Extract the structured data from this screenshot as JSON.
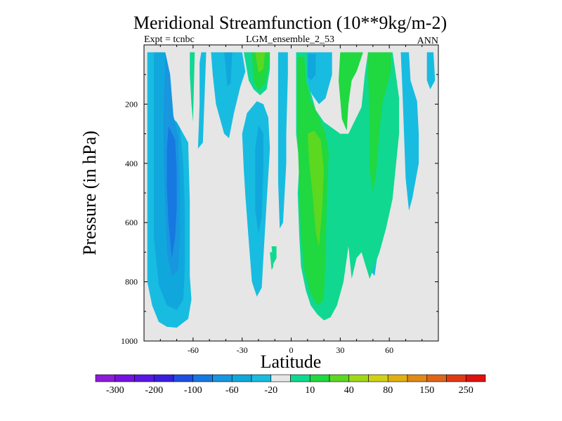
{
  "chart_data": {
    "type": "contour",
    "title": "Meridional Streamfunction (10**9kg/m-2)",
    "subtitle_left": "Expt = tcnbc",
    "subtitle_center": "LGM_ensemble_2_53",
    "subtitle_right": "ANN",
    "xlabel": "Latitude",
    "ylabel": "Pressure (in hPa)",
    "xlim": [
      -90,
      90
    ],
    "ylim": [
      0,
      1000
    ],
    "xticks": [
      -60,
      -30,
      0,
      30,
      60
    ],
    "yticks": [
      200,
      400,
      600,
      800,
      1000
    ],
    "background_color": "#e6e6e6",
    "colorbar": {
      "colors": [
        "#8c1cd8",
        "#7412e0",
        "#5a16e6",
        "#3a1ee0",
        "#1f4fe0",
        "#1678e0",
        "#1896e0",
        "#10a8dc",
        "#18bce0",
        "#e6e6e6",
        "#10d890",
        "#20d840",
        "#5cd820",
        "#a0d818",
        "#d0d018",
        "#e0b010",
        "#e08818",
        "#e06418",
        "#e03a14",
        "#e01010"
      ],
      "labels": [
        "-300",
        "-200",
        "-100",
        "-60",
        "-20",
        "10",
        "40",
        "80",
        "150",
        "250"
      ]
    },
    "regions": [
      {
        "sign": "negative",
        "level": "-20",
        "color": "#18bce0",
        "points": [
          [
            -88,
            25
          ],
          [
            -80,
            25
          ],
          [
            -77,
            230
          ],
          [
            -70,
            260
          ],
          [
            -63,
            330
          ],
          [
            -62,
            530
          ],
          [
            -62,
            780
          ],
          [
            -61,
            860
          ],
          [
            -63,
            925
          ],
          [
            -70,
            955
          ],
          [
            -76,
            952
          ],
          [
            -81,
            935
          ],
          [
            -85,
            880
          ],
          [
            -88,
            800
          ]
        ]
      },
      {
        "sign": "negative",
        "level": "-60",
        "color": "#10a8dc",
        "points": [
          [
            -84,
            25
          ],
          [
            -77,
            25
          ],
          [
            -74,
            230
          ],
          [
            -68,
            280
          ],
          [
            -66,
            400
          ],
          [
            -65,
            560
          ],
          [
            -65,
            750
          ],
          [
            -66,
            860
          ],
          [
            -70,
            895
          ],
          [
            -76,
            880
          ],
          [
            -81,
            810
          ],
          [
            -84,
            650
          ]
        ]
      },
      {
        "sign": "negative",
        "level": "-100",
        "color": "#1896e0",
        "points": [
          [
            -77,
            25
          ],
          [
            -74,
            100
          ],
          [
            -72,
            240
          ],
          [
            -69,
            310
          ],
          [
            -68,
            480
          ],
          [
            -68,
            640
          ],
          [
            -69,
            760
          ],
          [
            -73,
            780
          ],
          [
            -76,
            700
          ],
          [
            -77,
            560
          ],
          [
            -78,
            400
          ],
          [
            -78,
            230
          ]
        ]
      },
      {
        "sign": "negative",
        "level": "-300",
        "color": "#1678e0",
        "points": [
          [
            -75,
            275
          ],
          [
            -71,
            320
          ],
          [
            -70,
            420
          ],
          [
            -70,
            550
          ],
          [
            -71,
            650
          ],
          [
            -73,
            720
          ],
          [
            -75,
            600
          ],
          [
            -76,
            480
          ],
          [
            -76,
            350
          ]
        ]
      },
      {
        "sign": "negative",
        "level": "-20",
        "color": "#18bce0",
        "points": [
          [
            -55,
            25
          ],
          [
            -52,
            25
          ],
          [
            -54,
            330
          ],
          [
            -57,
            350
          ],
          [
            -56,
            200
          ],
          [
            -56,
            60
          ]
        ]
      },
      {
        "sign": "negative",
        "level": "-20",
        "color": "#18bce0",
        "points": [
          [
            -49,
            25
          ],
          [
            -30,
            25
          ],
          [
            -28,
            90
          ],
          [
            -31,
            140
          ],
          [
            -35,
            230
          ],
          [
            -38,
            315
          ],
          [
            -41,
            300
          ],
          [
            -46,
            200
          ],
          [
            -48,
            100
          ]
        ]
      },
      {
        "sign": "negative",
        "level": "-60",
        "color": "#10a8dc",
        "points": [
          [
            -41,
            25
          ],
          [
            -36,
            25
          ],
          [
            -37,
            130
          ],
          [
            -39,
            140
          ]
        ]
      },
      {
        "sign": "negative",
        "level": "-20",
        "color": "#18bce0",
        "points": [
          [
            -28,
            510
          ],
          [
            -29,
            420
          ],
          [
            -30,
            300
          ],
          [
            -27,
            230
          ],
          [
            -21,
            190
          ],
          [
            -17,
            200
          ],
          [
            -14,
            245
          ],
          [
            -13,
            350
          ],
          [
            -15,
            530
          ],
          [
            -17,
            720
          ],
          [
            -18,
            820
          ],
          [
            -21,
            850
          ],
          [
            -24,
            800
          ],
          [
            -26,
            660
          ]
        ]
      },
      {
        "sign": "negative",
        "level": "-60",
        "color": "#10a8dc",
        "points": [
          [
            -22,
            350
          ],
          [
            -20,
            270
          ],
          [
            -17,
            300
          ],
          [
            -17,
            420
          ],
          [
            -18,
            580
          ],
          [
            -20,
            640
          ],
          [
            -22,
            560
          ]
        ]
      },
      {
        "sign": "negative",
        "level": "-20",
        "color": "#18bce0",
        "points": [
          [
            -8,
            25
          ],
          [
            -2,
            25
          ],
          [
            -2,
            100
          ],
          [
            -3,
            300
          ],
          [
            -3,
            400
          ],
          [
            -5,
            600
          ],
          [
            -7,
            620
          ],
          [
            -8,
            460
          ],
          [
            -8,
            250
          ]
        ]
      },
      {
        "sign": "negative",
        "level": "-20",
        "color": "#18bce0",
        "points": [
          [
            4,
            25
          ],
          [
            25,
            25
          ],
          [
            25,
            100
          ],
          [
            21,
            180
          ],
          [
            17,
            200
          ],
          [
            13,
            170
          ],
          [
            9,
            125
          ],
          [
            7,
            100
          ]
        ]
      },
      {
        "sign": "negative",
        "level": "-60",
        "color": "#10a8dc",
        "points": [
          [
            5,
            30
          ],
          [
            15,
            30
          ],
          [
            15,
            100
          ],
          [
            12,
            120
          ],
          [
            9,
            100
          ]
        ]
      },
      {
        "sign": "negative",
        "level": "-20",
        "color": "#18bce0",
        "points": [
          [
            47,
            25
          ],
          [
            58,
            25
          ],
          [
            58,
            100
          ],
          [
            59,
            200
          ],
          [
            58,
            350
          ],
          [
            59,
            500
          ],
          [
            56,
            600
          ],
          [
            53,
            700
          ],
          [
            51,
            780
          ],
          [
            48,
            760
          ],
          [
            49,
            560
          ],
          [
            50,
            400
          ],
          [
            49,
            250
          ],
          [
            47,
            100
          ]
        ]
      },
      {
        "sign": "negative",
        "level": "-20",
        "color": "#18bce0",
        "points": [
          [
            67,
            25
          ],
          [
            72,
            25
          ],
          [
            73,
            120
          ],
          [
            77,
            190
          ],
          [
            78,
            300
          ],
          [
            78,
            400
          ],
          [
            74,
            520
          ],
          [
            72,
            560
          ],
          [
            70,
            450
          ],
          [
            69,
            300
          ],
          [
            68,
            150
          ]
        ]
      },
      {
        "sign": "negative",
        "level": "-20",
        "color": "#18bce0",
        "points": [
          [
            83,
            25
          ],
          [
            87,
            25
          ],
          [
            88,
            120
          ],
          [
            85,
            150
          ],
          [
            83,
            120
          ]
        ]
      },
      {
        "sign": "positive",
        "level": "10",
        "color": "#10d890",
        "points": [
          [
            -29,
            25
          ],
          [
            -13,
            25
          ],
          [
            -13,
            80
          ],
          [
            -15,
            150
          ],
          [
            -19,
            170
          ],
          [
            -23,
            150
          ],
          [
            -26,
            120
          ]
        ]
      },
      {
        "sign": "positive",
        "level": "10",
        "color": "#10d890",
        "points": [
          [
            -62,
            25
          ],
          [
            -59,
            25
          ],
          [
            -60,
            260
          ],
          [
            -61,
            200
          ],
          [
            -62,
            100
          ]
        ]
      },
      {
        "sign": "positive",
        "level": "10",
        "color": "#10d890",
        "points": [
          [
            3,
            25
          ],
          [
            10,
            25
          ],
          [
            10,
            120
          ],
          [
            15,
            220
          ],
          [
            20,
            260
          ],
          [
            30,
            300
          ],
          [
            35,
            300
          ],
          [
            43,
            210
          ],
          [
            45,
            100
          ],
          [
            47,
            25
          ],
          [
            62,
            25
          ],
          [
            64,
            100
          ],
          [
            66,
            180
          ],
          [
            66,
            300
          ],
          [
            62,
            520
          ],
          [
            58,
            620
          ],
          [
            54,
            700
          ],
          [
            48,
            790
          ],
          [
            43,
            700
          ],
          [
            40,
            720
          ],
          [
            37,
            790
          ],
          [
            35,
            680
          ],
          [
            32,
            800
          ],
          [
            28,
            880
          ],
          [
            24,
            920
          ],
          [
            20,
            930
          ],
          [
            16,
            910
          ],
          [
            12,
            880
          ],
          [
            9,
            830
          ],
          [
            6,
            750
          ],
          [
            5,
            650
          ],
          [
            4,
            500
          ],
          [
            5,
            400
          ],
          [
            3,
            300
          ],
          [
            3,
            150
          ]
        ]
      },
      {
        "sign": "positive",
        "level": "10",
        "color": "#10d890",
        "points": [
          [
            -12,
            680
          ],
          [
            -9,
            680
          ],
          [
            -9,
            720
          ],
          [
            -11,
            740
          ]
        ]
      },
      {
        "sign": "positive",
        "level": "40",
        "color": "#20d840",
        "points": [
          [
            -24,
            25
          ],
          [
            -13,
            25
          ],
          [
            -14,
            80
          ],
          [
            -16,
            130
          ],
          [
            -20,
            155
          ],
          [
            -23,
            120
          ]
        ]
      },
      {
        "sign": "positive",
        "level": "40",
        "color": "#20d840",
        "points": [
          [
            4,
            40
          ],
          [
            8,
            40
          ],
          [
            9,
            120
          ],
          [
            12,
            190
          ],
          [
            16,
            230
          ],
          [
            21,
            300
          ],
          [
            23,
            360
          ],
          [
            22,
            500
          ],
          [
            21,
            700
          ],
          [
            20,
            860
          ],
          [
            16,
            880
          ],
          [
            12,
            840
          ],
          [
            8,
            760
          ],
          [
            6,
            640
          ],
          [
            5,
            480
          ],
          [
            4,
            320
          ],
          [
            4,
            150
          ]
        ]
      },
      {
        "sign": "positive",
        "level": "40",
        "color": "#20d840",
        "points": [
          [
            30,
            25
          ],
          [
            44,
            25
          ],
          [
            40,
            90
          ],
          [
            37,
            120
          ],
          [
            35,
            200
          ],
          [
            34,
            290
          ],
          [
            31,
            250
          ],
          [
            29,
            120
          ]
        ]
      },
      {
        "sign": "positive",
        "level": "40",
        "color": "#20d840",
        "points": [
          [
            47,
            25
          ],
          [
            61,
            25
          ],
          [
            61,
            90
          ],
          [
            56,
            190
          ],
          [
            54,
            290
          ],
          [
            52,
            430
          ],
          [
            50,
            500
          ],
          [
            48,
            420
          ],
          [
            48,
            250
          ],
          [
            47,
            100
          ]
        ]
      },
      {
        "sign": "positive",
        "level": "80",
        "color": "#5cd820",
        "points": [
          [
            -22,
            25
          ],
          [
            -16,
            25
          ],
          [
            -17,
            80
          ],
          [
            -20,
            95
          ]
        ]
      },
      {
        "sign": "positive",
        "level": "80",
        "color": "#5cd820",
        "points": [
          [
            10,
            300
          ],
          [
            14,
            290
          ],
          [
            18,
            320
          ],
          [
            20,
            420
          ],
          [
            19,
            550
          ],
          [
            17,
            680
          ],
          [
            15,
            630
          ],
          [
            13,
            500
          ],
          [
            11,
            400
          ]
        ]
      },
      {
        "sign": "positive",
        "level": "10",
        "color": "#10d890",
        "points": [
          [
            -13,
            700
          ],
          [
            -11,
            700
          ],
          [
            -11,
            750
          ],
          [
            -12,
            760
          ]
        ]
      }
    ]
  }
}
